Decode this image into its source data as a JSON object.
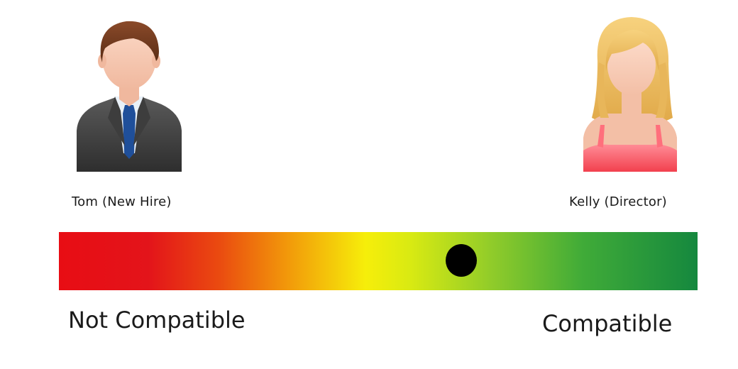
{
  "people": {
    "left": {
      "label": "Tom (New Hire)",
      "icon": "male-businessman-icon"
    },
    "right": {
      "label": "Kelly (Director)",
      "icon": "female-avatar-icon"
    }
  },
  "scale": {
    "left_label": "Not Compatible",
    "right_label": "Compatible",
    "gradient_colors": [
      "#e80d14",
      "#ea4a10",
      "#f29a0a",
      "#f6ee0a",
      "#8fcb2a",
      "#15883e"
    ],
    "marker_level": 0.63
  }
}
